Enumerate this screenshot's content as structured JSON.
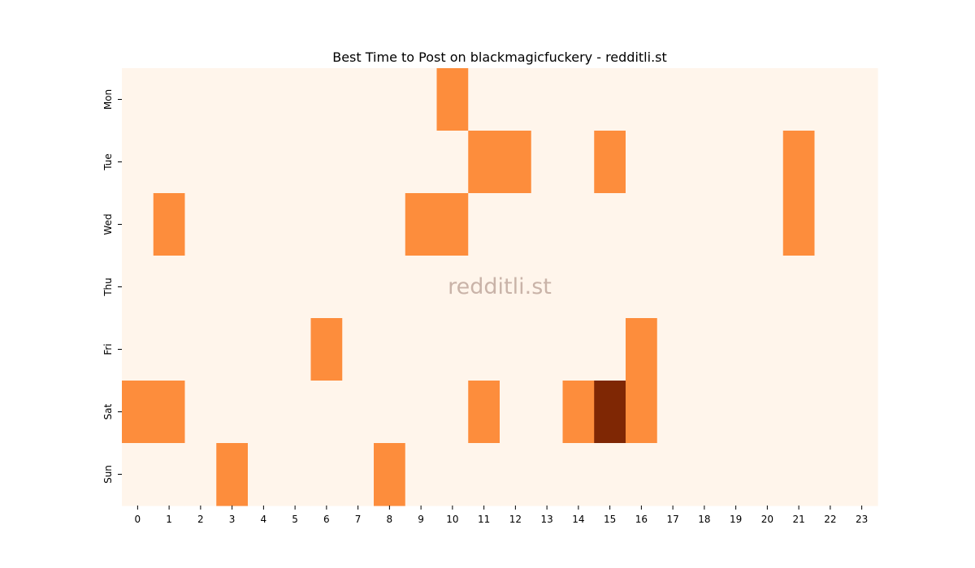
{
  "chart_data": {
    "type": "heatmap",
    "title": "Best Time to Post on blackmagicfuckery - redditli.st",
    "watermark": "redditli.st",
    "x_categories": [
      "0",
      "1",
      "2",
      "3",
      "4",
      "5",
      "6",
      "7",
      "8",
      "9",
      "10",
      "11",
      "12",
      "13",
      "14",
      "15",
      "16",
      "17",
      "18",
      "19",
      "20",
      "21",
      "22",
      "23"
    ],
    "y_categories": [
      "Mon",
      "Tue",
      "Wed",
      "Thu",
      "Fri",
      "Sat",
      "Sun"
    ],
    "xlabel": "",
    "ylabel": "",
    "values": [
      [
        0,
        0,
        0,
        0,
        0,
        0,
        0,
        0,
        0,
        0,
        1,
        0,
        0,
        0,
        0,
        0,
        0,
        0,
        0,
        0,
        0,
        0,
        0,
        0
      ],
      [
        0,
        0,
        0,
        0,
        0,
        0,
        0,
        0,
        0,
        0,
        0,
        1,
        1,
        0,
        0,
        1,
        0,
        0,
        0,
        0,
        0,
        1,
        0,
        0
      ],
      [
        0,
        1,
        0,
        0,
        0,
        0,
        0,
        0,
        0,
        1,
        1,
        0,
        0,
        0,
        0,
        0,
        0,
        0,
        0,
        0,
        0,
        1,
        0,
        0
      ],
      [
        0,
        0,
        0,
        0,
        0,
        0,
        0,
        0,
        0,
        0,
        0,
        0,
        0,
        0,
        0,
        0,
        0,
        0,
        0,
        0,
        0,
        0,
        0,
        0
      ],
      [
        0,
        0,
        0,
        0,
        0,
        0,
        1,
        0,
        0,
        0,
        0,
        0,
        0,
        0,
        0,
        0,
        1,
        0,
        0,
        0,
        0,
        0,
        0,
        0
      ],
      [
        1,
        1,
        0,
        0,
        0,
        0,
        0,
        0,
        0,
        0,
        0,
        1,
        0,
        0,
        1,
        2,
        1,
        0,
        0,
        0,
        0,
        0,
        0,
        0
      ],
      [
        0,
        0,
        0,
        1,
        0,
        0,
        0,
        0,
        1,
        0,
        0,
        0,
        0,
        0,
        0,
        0,
        0,
        0,
        0,
        0,
        0,
        0,
        0,
        0
      ]
    ],
    "colorscale": {
      "0": "#fff5eb",
      "1": "#fd8d3c",
      "2": "#7f2704"
    },
    "grid": false,
    "legend": "none"
  }
}
